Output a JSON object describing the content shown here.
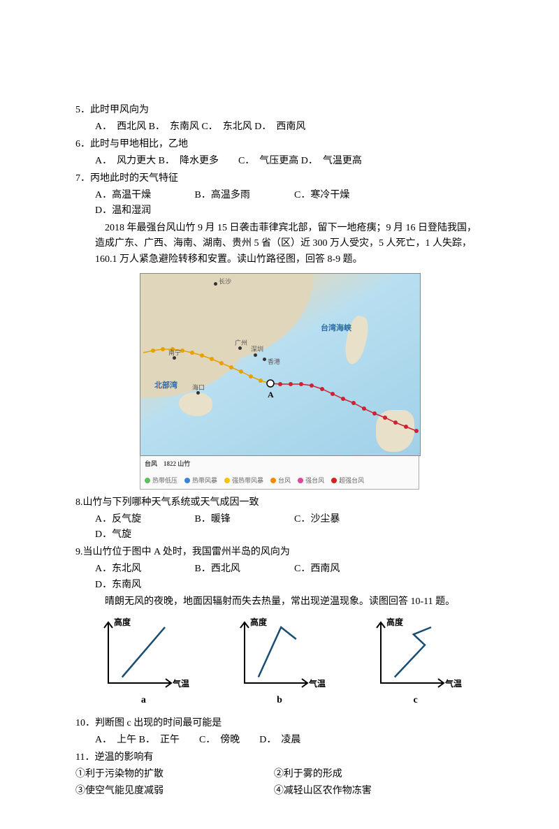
{
  "q5": {
    "stem": "5．此时甲风向为",
    "opts": "A．　西北风 B．　东南风 C．　东北风 D．　西南风"
  },
  "q6": {
    "stem": "6．此时与甲地相比，乙地",
    "opts": "A．　风力更大 B．　降水更多　　C．　气压更高 D．　气温更高"
  },
  "q7": {
    "stem": "7．丙地此时的天气特征",
    "A": "A．高温干燥",
    "B": "B．高温多雨",
    "C": "C．寒冷干燥",
    "D": "D．温和湿润"
  },
  "intro8": "2018 年最强台风山竹 9 月 15 日袭击菲律宾北部，留下一地疮痍；9 月 16 日登陆我国，造成广东、广西、海南、湖南、贵州 5 省（区）近 300 万人受灾，5 人死亡，1 人失踪，160.1 万人紧急避险转移和安置。读山竹路径图，回答 8-9 题。",
  "map": {
    "sea_label_tw": "台湾海峡",
    "sea_label_bbw": "北部湾",
    "cities": {
      "changsha": "长沙",
      "guangzhou": "广州",
      "shenzhen": "深圳",
      "xianggang": "香港",
      "nanning": "南宁",
      "haikou": "海口"
    },
    "A_label": "A",
    "legend_title": "台风　1822 山竹",
    "legend": {
      "l1": "热带低压",
      "l2": "热带风暴",
      "l3": "强热带风暴",
      "l4": "台风",
      "l5": "强台风",
      "l6": "超强台风"
    },
    "colors": {
      "l1": "#5bc25b",
      "l2": "#3a85d6",
      "l3": "#f4c20d",
      "l4": "#f58b00",
      "l5": "#e0469a",
      "l6": "#d62020"
    }
  },
  "q8": {
    "stem": "8.山竹与下列哪种天气系统或天气成因一致",
    "A": "A．反气旋",
    "B": "B．暖锋",
    "C": "C．沙尘暴",
    "D": "D．气旋"
  },
  "q9": {
    "stem": "9.当山竹位于图中 A 处时，我国雷州半岛的风向为",
    "A": "A．东北风",
    "B": "B．西北风",
    "C": "C．西南风",
    "D": "D．东南风"
  },
  "intro10": "晴朗无风的夜晚，地面因辐射而失去热量，常出现逆温现象。读图回答 10-11 题。",
  "chart": {
    "ylabel": "高度",
    "xlabel": "气温",
    "a": {
      "label": "a",
      "pts": [
        [
          22,
          10
        ],
        [
          90,
          94
        ]
      ]
    },
    "b": {
      "label": "b",
      "pts": [
        [
          22,
          10
        ],
        [
          58,
          94
        ],
        [
          82,
          74
        ]
      ]
    },
    "c": {
      "label": "c",
      "pts": [
        [
          22,
          10
        ],
        [
          70,
          64
        ],
        [
          52,
          82
        ],
        [
          80,
          94
        ]
      ]
    },
    "axis_color": "#000000",
    "line_color": "#1a4d73",
    "bg": "#ffffff"
  },
  "q10": {
    "stem": "10．判断图 c 出现的时间最可能是",
    "opts": "A．　上午 B．　正午　　C．　傍晚　　D．　凌晨"
  },
  "q11": {
    "stem": "11．逆温的影响有",
    "s1": "①利于污染物的扩散",
    "s2": "②利于雾的形成",
    "s3": "③使空气能见度减弱",
    "s4": "④减轻山区农作物冻害"
  }
}
